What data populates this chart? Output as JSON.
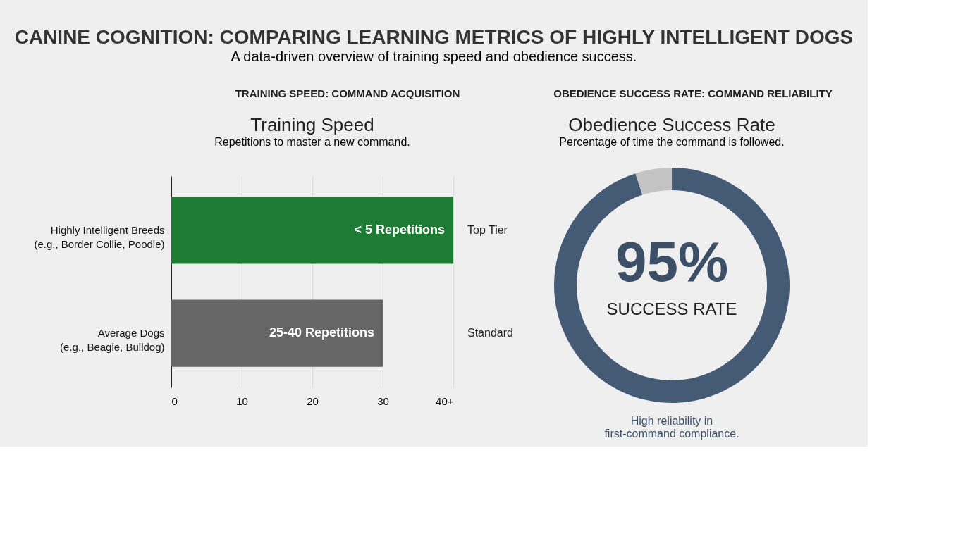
{
  "chart_data": [
    {
      "type": "bar",
      "orientation": "horizontal",
      "title": "Training Speed",
      "subtitle": "Repetitions to master a new command.",
      "categories": [
        "Highly Intelligent Breeds\n(e.g., Border Collie, Poodle)",
        "Average Dogs\n(e.g., Beagle, Bulldog)"
      ],
      "values": [
        40,
        30
      ],
      "colors": [
        "#1e7b34",
        "#666666"
      ],
      "value_labels": [
        "< 5 Repetitions",
        "25-40 Repetitions"
      ],
      "xlim": [
        0,
        40
      ],
      "xticks": [
        0,
        10,
        20,
        30,
        {
          "value": 40,
          "label": "40+"
        }
      ],
      "grid": "x",
      "annotations": [
        "CANINE COGNITION: COMPARING LEARNING METRICS OF HIGHLY INTELLIGENT DOGS",
        "A data-driven overview of training speed and obedience success.",
        "TRAINING SPEED: COMMAND ACQUISITION",
        "Top Tier",
        "Standard"
      ]
    },
    {
      "type": "donut",
      "title": "Obedience Success Rate",
      "subtitle": "Percentage of time the command is followed.",
      "categories": [
        null,
        null
      ],
      "values": [
        95,
        5
      ],
      "colors": [
        "#455a75",
        "#c4c4c4"
      ],
      "value_labels": [
        "95%",
        null
      ],
      "annotations": [
        "OBEDIENCE SUCCESS RATE: COMMAND RELIABILITY",
        "SUCCESS RATE",
        "High reliability in\nfirst-command compliance."
      ]
    }
  ]
}
